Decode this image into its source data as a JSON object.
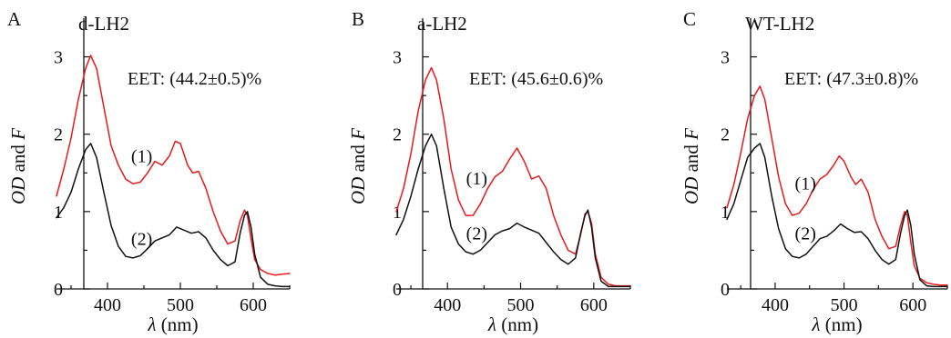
{
  "chart_data": [
    {
      "type": "line",
      "panel_letter": "A",
      "title": "d-LH2",
      "annotation": "EET: (44.2±0.5)%",
      "xlabel_symbol": "λ",
      "xlabel_unit": " (nm)",
      "ylabel_italic_1": "OD",
      "ylabel_plain": " and ",
      "ylabel_italic_2": "F",
      "xlim": [
        330,
        650
      ],
      "ylim": [
        0,
        3.5
      ],
      "xticks": [
        400,
        500,
        600
      ],
      "xtick_labels": [
        "400",
        "500",
        "600"
      ],
      "yticks": [
        0,
        1,
        2,
        3
      ],
      "ytick_labels": [
        "0",
        "1",
        "2",
        "3"
      ],
      "series": [
        {
          "name": "(1)",
          "color": "#e8191c",
          "label_at": [
            447,
            1.72
          ],
          "x": [
            330,
            340,
            350,
            360,
            370,
            377,
            385,
            395,
            405,
            415,
            425,
            435,
            445,
            455,
            465,
            475,
            485,
            493,
            500,
            510,
            517,
            525,
            535,
            545,
            555,
            565,
            575,
            582,
            588,
            592,
            597,
            602,
            610,
            620,
            630,
            640,
            650
          ],
          "y": [
            1.2,
            1.55,
            1.95,
            2.45,
            2.85,
            3.02,
            2.85,
            2.35,
            1.85,
            1.6,
            1.42,
            1.36,
            1.38,
            1.5,
            1.65,
            1.6,
            1.72,
            1.91,
            1.88,
            1.6,
            1.5,
            1.52,
            1.3,
            1.0,
            0.75,
            0.58,
            0.62,
            0.88,
            1.02,
            0.95,
            0.65,
            0.38,
            0.25,
            0.2,
            0.18,
            0.19,
            0.2
          ]
        },
        {
          "name": "(2)",
          "color": "#111111",
          "label_at": [
            447,
            0.65
          ],
          "x": [
            330,
            340,
            350,
            360,
            370,
            377,
            385,
            395,
            405,
            415,
            425,
            435,
            445,
            455,
            465,
            475,
            485,
            495,
            505,
            515,
            525,
            535,
            545,
            555,
            565,
            575,
            582,
            588,
            592,
            597,
            602,
            610,
            620,
            630,
            640,
            650
          ],
          "y": [
            0.92,
            1.05,
            1.25,
            1.55,
            1.8,
            1.88,
            1.7,
            1.25,
            0.82,
            0.55,
            0.42,
            0.4,
            0.43,
            0.52,
            0.62,
            0.66,
            0.7,
            0.8,
            0.76,
            0.72,
            0.74,
            0.66,
            0.5,
            0.38,
            0.3,
            0.35,
            0.72,
            0.95,
            1.0,
            0.8,
            0.45,
            0.15,
            0.06,
            0.04,
            0.03,
            0.03
          ]
        }
      ]
    },
    {
      "type": "line",
      "panel_letter": "B",
      "title": "a-LH2",
      "annotation": "EET: (45.6±0.6)%",
      "xlabel_symbol": "λ",
      "xlabel_unit": " (nm)",
      "ylabel_italic_1": "OD",
      "ylabel_plain": " and ",
      "ylabel_italic_2": "F",
      "xlim": [
        330,
        650
      ],
      "ylim": [
        0,
        3.5
      ],
      "xticks": [
        400,
        500,
        600
      ],
      "xtick_labels": [
        "400",
        "500",
        "600"
      ],
      "yticks": [
        0,
        1,
        2,
        3
      ],
      "ytick_labels": [
        "0",
        "1",
        "2",
        "3"
      ],
      "series": [
        {
          "name": "(1)",
          "color": "#e8191c",
          "label_at": [
            440,
            1.43
          ],
          "x": [
            330,
            340,
            350,
            360,
            370,
            378,
            385,
            395,
            405,
            415,
            425,
            435,
            445,
            455,
            465,
            475,
            485,
            495,
            505,
            515,
            525,
            535,
            545,
            555,
            565,
            575,
            582,
            588,
            592,
            597,
            602,
            610,
            620,
            630,
            640,
            650
          ],
          "y": [
            1.0,
            1.3,
            1.75,
            2.3,
            2.7,
            2.86,
            2.7,
            2.2,
            1.55,
            1.15,
            0.95,
            0.95,
            1.1,
            1.3,
            1.45,
            1.52,
            1.68,
            1.82,
            1.65,
            1.42,
            1.46,
            1.3,
            0.95,
            0.7,
            0.5,
            0.45,
            0.7,
            0.97,
            1.0,
            0.85,
            0.45,
            0.15,
            0.06,
            0.04,
            0.04,
            0.04
          ]
        },
        {
          "name": "(2)",
          "color": "#111111",
          "label_at": [
            440,
            0.72
          ],
          "x": [
            330,
            340,
            350,
            360,
            370,
            378,
            385,
            395,
            405,
            415,
            425,
            435,
            445,
            455,
            465,
            475,
            485,
            495,
            505,
            515,
            525,
            535,
            545,
            555,
            565,
            575,
            582,
            588,
            592,
            597,
            602,
            610,
            620,
            630,
            640,
            650
          ],
          "y": [
            0.7,
            0.9,
            1.2,
            1.55,
            1.85,
            2.0,
            1.85,
            1.3,
            0.8,
            0.58,
            0.48,
            0.45,
            0.5,
            0.6,
            0.7,
            0.75,
            0.78,
            0.85,
            0.8,
            0.76,
            0.72,
            0.6,
            0.48,
            0.38,
            0.32,
            0.4,
            0.72,
            0.95,
            1.02,
            0.8,
            0.4,
            0.1,
            0.03,
            0.03,
            0.03,
            0.03
          ]
        }
      ]
    },
    {
      "type": "line",
      "panel_letter": "C",
      "title": "WT-LH2",
      "annotation": "EET: (47.3±0.8)%",
      "xlabel_symbol": "λ",
      "xlabel_unit": " (nm)",
      "ylabel_italic_1": "OD",
      "ylabel_plain": " and ",
      "ylabel_italic_2": "F",
      "xlim": [
        330,
        650
      ],
      "ylim": [
        0,
        3.5
      ],
      "xticks": [
        400,
        500,
        600
      ],
      "xtick_labels": [
        "400",
        "500",
        "600"
      ],
      "yticks": [
        0,
        1,
        2,
        3
      ],
      "ytick_labels": [
        "0",
        "1",
        "2",
        "3"
      ],
      "series": [
        {
          "name": "(1)",
          "color": "#e8191c",
          "label_at": [
            444,
            1.37
          ],
          "x": [
            330,
            340,
            350,
            360,
            370,
            378,
            385,
            395,
            405,
            415,
            425,
            435,
            445,
            455,
            465,
            475,
            485,
            493,
            500,
            510,
            517,
            525,
            535,
            545,
            555,
            565,
            575,
            582,
            588,
            592,
            597,
            602,
            610,
            620,
            630,
            640,
            650
          ],
          "y": [
            1.05,
            1.35,
            1.75,
            2.2,
            2.5,
            2.62,
            2.45,
            1.95,
            1.45,
            1.1,
            0.95,
            0.98,
            1.1,
            1.28,
            1.42,
            1.48,
            1.6,
            1.72,
            1.65,
            1.45,
            1.35,
            1.42,
            1.25,
            0.9,
            0.68,
            0.52,
            0.55,
            0.82,
            1.0,
            0.95,
            0.6,
            0.3,
            0.14,
            0.08,
            0.06,
            0.05,
            0.05
          ]
        },
        {
          "name": "(2)",
          "color": "#111111",
          "label_at": [
            444,
            0.72
          ],
          "x": [
            330,
            340,
            350,
            360,
            370,
            378,
            385,
            395,
            405,
            415,
            425,
            435,
            445,
            455,
            465,
            475,
            485,
            495,
            505,
            515,
            525,
            535,
            545,
            555,
            565,
            575,
            582,
            588,
            592,
            597,
            602,
            610,
            620,
            630,
            640,
            650
          ],
          "y": [
            0.9,
            1.1,
            1.4,
            1.7,
            1.82,
            1.88,
            1.7,
            1.2,
            0.78,
            0.52,
            0.42,
            0.4,
            0.45,
            0.55,
            0.65,
            0.68,
            0.75,
            0.84,
            0.78,
            0.73,
            0.74,
            0.65,
            0.5,
            0.38,
            0.32,
            0.38,
            0.72,
            0.95,
            1.02,
            0.82,
            0.45,
            0.12,
            0.04,
            0.03,
            0.03,
            0.03
          ]
        }
      ]
    }
  ]
}
